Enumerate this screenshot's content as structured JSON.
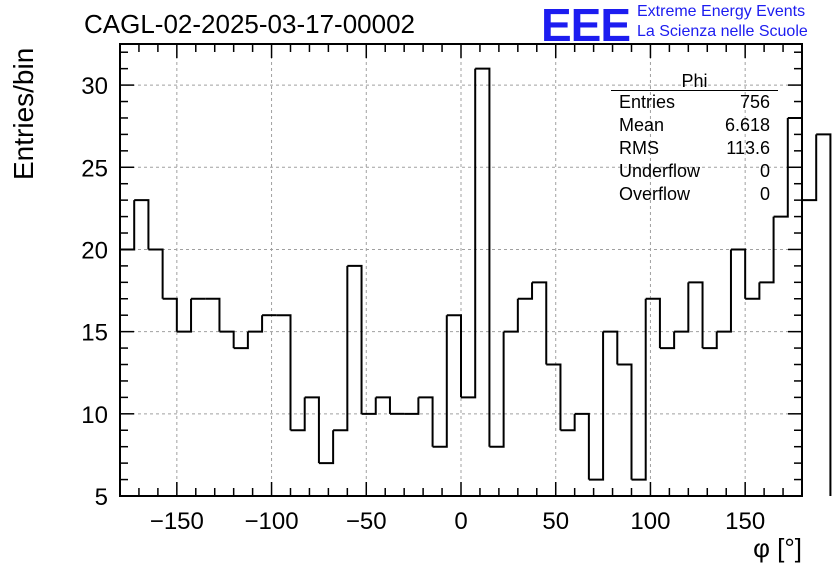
{
  "header": {
    "title": "CAGL-02-2025-03-17-00002",
    "logo_text": "EEE",
    "logo_line1": "Extreme Energy Events",
    "logo_line2": "La Scienza nelle Scuole",
    "logo_color": "#1c1cf0"
  },
  "stats_box": {
    "name": "Phi",
    "rows": [
      {
        "label": "Entries",
        "value": "756"
      },
      {
        "label": "Mean",
        "value": "6.618"
      },
      {
        "label": "RMS",
        "value": "113.6"
      },
      {
        "label": "Underflow",
        "value": "0"
      },
      {
        "label": "Overflow",
        "value": "0"
      }
    ]
  },
  "chart_data": {
    "type": "histogram",
    "title": "CAGL-02-2025-03-17-00002",
    "xlabel": "φ [°]",
    "ylabel": "Entries/bin",
    "xlim": [
      -180,
      180
    ],
    "ylim": [
      5,
      32.5
    ],
    "bin_width": 7.5,
    "bin_edges_start": -180,
    "values": [
      20,
      23,
      20,
      17,
      15,
      17,
      17,
      15,
      14,
      15,
      16,
      16,
      9,
      11,
      7,
      9,
      19,
      10,
      11,
      10,
      10,
      11,
      8,
      16,
      11,
      31,
      8,
      15,
      17,
      18,
      13,
      9,
      10,
      6,
      15,
      13,
      6,
      17,
      14,
      15,
      18,
      14,
      15,
      20,
      17,
      18,
      22,
      28,
      23,
      27
    ],
    "x_ticks": [
      -150,
      -100,
      -50,
      0,
      50,
      100,
      150
    ],
    "x_tick_labels": [
      "−150",
      "−100",
      "−50",
      "0",
      "50",
      "100",
      "150"
    ],
    "y_ticks": [
      5,
      10,
      15,
      20,
      25,
      30
    ],
    "y_tick_labels": [
      "5",
      "10",
      "15",
      "20",
      "25",
      "30"
    ],
    "grid": true,
    "legend_position": "top-right",
    "line_color": "#000000",
    "grid_color": "#a0a0a0"
  }
}
